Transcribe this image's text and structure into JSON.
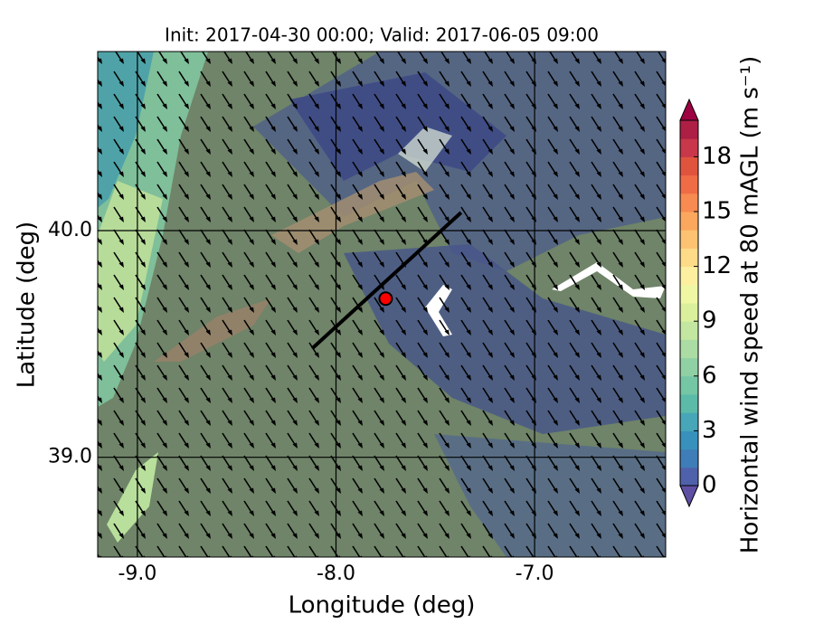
{
  "chart_data": {
    "type": "contour_map",
    "title": "Init: 2017-04-30 00:00; Valid: 2017-06-05 09:00",
    "x_label": "Longitude (deg)",
    "y_label": "Latitude (deg)",
    "xlim": [
      -9.2,
      -6.34
    ],
    "ylim": [
      38.56,
      40.79
    ],
    "xticks": [
      {
        "value": -9,
        "label": "-9.0"
      },
      {
        "value": -8,
        "label": "-8.0"
      },
      {
        "value": -7,
        "label": "-7.0"
      }
    ],
    "yticks": [
      {
        "value": 39,
        "label": "39.0"
      },
      {
        "value": 40,
        "label": "40.0"
      }
    ],
    "grid": true,
    "point": {
      "lon": -7.75,
      "lat": 39.7,
      "color": "#ff0000"
    },
    "section": {
      "lon": [
        -8.12,
        -7.37
      ],
      "lat": [
        39.48,
        40.08
      ],
      "color": "#000000"
    },
    "colorbar": {
      "label": "Horizontal wind speed at 80 mAGL (m s⁻¹)",
      "lim": [
        0,
        20
      ],
      "ticks": [
        0,
        3,
        6,
        9,
        12,
        15,
        18
      ],
      "colors": [
        "#4f61aa",
        "#3f7db8",
        "#3891bc",
        "#47a6b7",
        "#5bbaa8",
        "#74c6a5",
        "#8fd1a4",
        "#aadca4",
        "#c3e6a0",
        "#dbf09d",
        "#f0f7a4",
        "#fdefa0",
        "#fedb88",
        "#fdc372",
        "#fca75e",
        "#f88b51",
        "#ef6c46",
        "#e0543e",
        "#c8374a",
        "#ad1f45"
      ],
      "under_color": "#5e4fa2",
      "over_color": "#9e0142"
    }
  }
}
